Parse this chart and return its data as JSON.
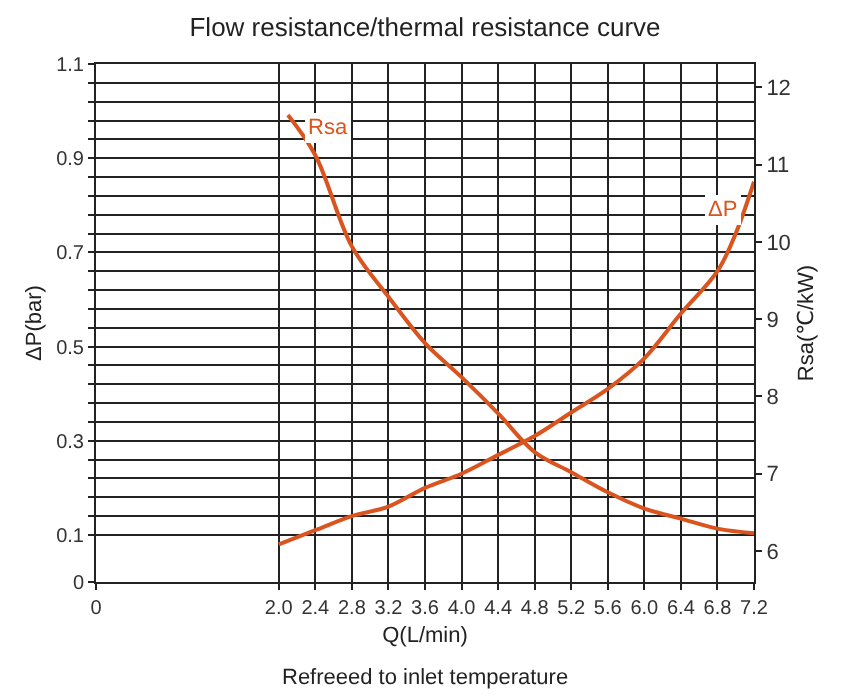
{
  "chart_data": {
    "type": "line",
    "title": "Flow resistance/thermal resistance curve",
    "xlabel": "Q(L/min)",
    "ylabel": "ΔP(bar)",
    "y2label": "Rsa(℃/kW)",
    "annotations": [
      "Refreeed to inlet temperature"
    ],
    "grid": true,
    "legend": false,
    "marker": "none",
    "line_style": "solid",
    "xlim": [
      0,
      7.2
    ],
    "xticks": [
      0,
      {
        "value": 2,
        "label": "2.0"
      },
      2.4,
      2.8,
      3.2,
      3.6,
      {
        "value": 4,
        "label": "4.0"
      },
      4.4,
      4.8,
      5.2,
      5.6,
      {
        "value": 6,
        "label": "6.0"
      },
      6.4,
      6.8,
      7.2
    ],
    "ylim": [
      0,
      1.1
    ],
    "yticks": [
      0,
      0.1,
      {
        "value": 0.14,
        "label": null
      },
      {
        "value": 0.18,
        "label": null
      },
      {
        "value": 0.22,
        "label": null
      },
      {
        "value": 0.26,
        "label": null
      },
      0.3,
      {
        "value": 0.34,
        "label": null
      },
      {
        "value": 0.38,
        "label": null
      },
      {
        "value": 0.42,
        "label": null
      },
      {
        "value": 0.46,
        "label": null
      },
      0.5,
      {
        "value": 0.54,
        "label": null
      },
      {
        "value": 0.58,
        "label": null
      },
      {
        "value": 0.62,
        "label": null
      },
      {
        "value": 0.66,
        "label": null
      },
      0.7,
      {
        "value": 0.74,
        "label": null
      },
      {
        "value": 0.78,
        "label": null
      },
      {
        "value": 0.82,
        "label": null
      },
      {
        "value": 0.86,
        "label": null
      },
      0.9,
      {
        "value": 0.94,
        "label": null
      },
      {
        "value": 0.98,
        "label": null
      },
      {
        "value": 1.02,
        "label": null
      },
      {
        "value": 1.06,
        "label": null
      },
      1.1
    ],
    "y2lim": [
      5.6,
      12.3
    ],
    "y2ticks": [
      6,
      7,
      8,
      9,
      10,
      11,
      12
    ],
    "series": [
      {
        "name": "Rsa",
        "color": "#d9541e",
        "axis": "y2",
        "x": [
          2.1,
          2.4,
          2.8,
          3.2,
          3.6,
          4.0,
          4.4,
          4.8,
          5.2,
          5.6,
          6.0,
          6.4,
          6.8,
          7.2
        ],
        "values": [
          11.64,
          11.12,
          9.94,
          9.29,
          8.69,
          8.25,
          7.78,
          7.28,
          7.02,
          6.76,
          6.55,
          6.42,
          6.29,
          6.23
        ]
      },
      {
        "name": "ΔP",
        "color": "#d9541e",
        "x": [
          2.0,
          2.4,
          2.8,
          3.2,
          3.6,
          4.0,
          4.4,
          4.8,
          5.2,
          5.6,
          6.0,
          6.4,
          6.8,
          7.0,
          7.2
        ],
        "values": [
          0.08,
          0.11,
          0.14,
          0.16,
          0.2,
          0.23,
          0.27,
          0.31,
          0.36,
          0.41,
          0.475,
          0.57,
          0.66,
          0.74,
          0.85
        ]
      }
    ]
  }
}
